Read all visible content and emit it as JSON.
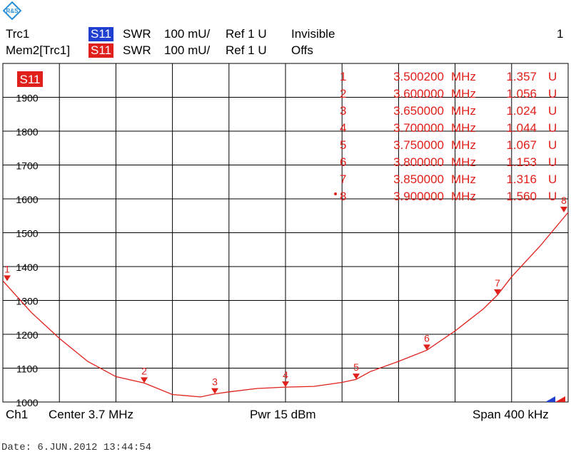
{
  "header": {
    "row1": {
      "trace": "Trc1",
      "param": "S11",
      "format": "SWR",
      "scale": "100 mU/",
      "ref": "Ref 1 U",
      "state": "Invisible",
      "number": "1"
    },
    "row2": {
      "trace": "Mem2[Trc1]",
      "param": "S11",
      "format": "SWR",
      "scale": "100 mU/",
      "ref": "Ref 1 U",
      "state": "Offs"
    }
  },
  "footer": {
    "channel": "Ch1",
    "center": "Center 3.7 MHz",
    "power": "Pwr 15 dBm",
    "span": "Span 400 kHz"
  },
  "date_line": "Date: 6.JUN.2012 13:44:54",
  "colors": {
    "trace": "#e0201a",
    "s11_blue": "#1f3fd1",
    "grid": "#000000"
  },
  "logo": {
    "name": "rohde-schwarz-logo",
    "text": "R&S"
  },
  "chart_data": {
    "type": "line",
    "title": "",
    "trace_label": "S11",
    "xlabel": "",
    "ylabel": "",
    "xlim": [
      3.5,
      3.9
    ],
    "ylim": [
      1000,
      2000
    ],
    "y_ticks": [
      "1900",
      "1800",
      "1700",
      "1600",
      "1500",
      "1400",
      "1300",
      "1200",
      "1100",
      "1000"
    ],
    "grid": true,
    "series": [
      {
        "name": "S11",
        "x": [
          3.5002,
          3.52,
          3.54,
          3.56,
          3.58,
          3.6,
          3.62,
          3.64,
          3.65,
          3.66,
          3.68,
          3.7,
          3.72,
          3.74,
          3.75,
          3.76,
          3.78,
          3.8,
          3.82,
          3.84,
          3.85,
          3.86,
          3.88,
          3.9
        ],
        "y": [
          1357,
          1265,
          1188,
          1120,
          1075,
          1056,
          1022,
          1015,
          1024,
          1030,
          1040,
          1044,
          1046,
          1058,
          1067,
          1090,
          1120,
          1153,
          1210,
          1275,
          1316,
          1370,
          1460,
          1560
        ]
      }
    ],
    "markers": [
      {
        "n": "1",
        "freq": "3.500200",
        "unit": "MHz",
        "value": "1.357",
        "vunit": "U",
        "x": 3.5002,
        "y": 1357
      },
      {
        "n": "2",
        "freq": "3.600000",
        "unit": "MHz",
        "value": "1.056",
        "vunit": "U",
        "x": 3.6,
        "y": 1056
      },
      {
        "n": "3",
        "freq": "3.650000",
        "unit": "MHz",
        "value": "1.024",
        "vunit": "U",
        "x": 3.65,
        "y": 1024
      },
      {
        "n": "4",
        "freq": "3.700000",
        "unit": "MHz",
        "value": "1.044",
        "vunit": "U",
        "x": 3.7,
        "y": 1044
      },
      {
        "n": "5",
        "freq": "3.750000",
        "unit": "MHz",
        "value": "1.067",
        "vunit": "U",
        "x": 3.75,
        "y": 1067
      },
      {
        "n": "6",
        "freq": "3.800000",
        "unit": "MHz",
        "value": "1.153",
        "vunit": "U",
        "x": 3.8,
        "y": 1153
      },
      {
        "n": "7",
        "freq": "3.850000",
        "unit": "MHz",
        "value": "1.316",
        "vunit": "U",
        "x": 3.85,
        "y": 1316
      },
      {
        "n": "8",
        "freq": "3.900000",
        "unit": "MHz",
        "value": "1.560",
        "vunit": "U",
        "x": 3.9,
        "y": 1560
      }
    ]
  }
}
